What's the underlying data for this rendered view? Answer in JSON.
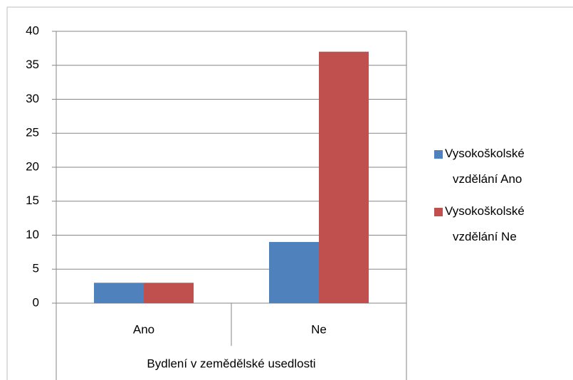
{
  "chart_data": {
    "type": "bar",
    "x_label": "Bydlení v zemědělské usedlosti",
    "categories": [
      "Ano",
      "Ne"
    ],
    "series": [
      {
        "name": "Vysokoškolské vzdělání Ano",
        "color": "#4f81bd",
        "values": [
          3,
          9
        ]
      },
      {
        "name": "Vysokoškolské vzdělání Ne",
        "color": "#c0504d",
        "values": [
          3,
          37
        ]
      }
    ],
    "ylim": [
      0,
      40
    ],
    "yticks": [
      0,
      5,
      10,
      15,
      20,
      25,
      30,
      35,
      40
    ],
    "grid": true,
    "legend": "right"
  }
}
